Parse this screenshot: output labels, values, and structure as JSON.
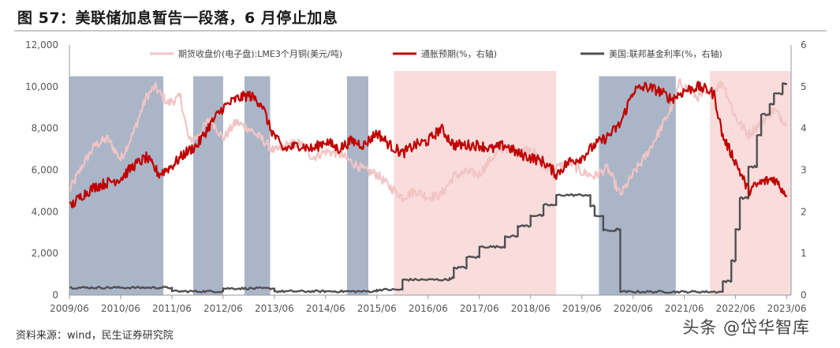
{
  "title": "图 57：美联储加息暂告一段落，6 月停止加息",
  "source": "资料来源：wind，民生证券研究院",
  "watermark": "头条 @岱华智库",
  "chart_data": {
    "type": "line",
    "x_tick_labels": [
      "2009/06",
      "2010/06",
      "2011/06",
      "2012/06",
      "2013/06",
      "2014/06",
      "2015/06",
      "2016/06",
      "2017/06",
      "2018/06",
      "2019/06",
      "2020/06",
      "2021/06",
      "2022/06",
      "2023/06"
    ],
    "x_range": [
      "2009/06",
      "2023/07"
    ],
    "y_left": {
      "range": [
        0,
        12000
      ],
      "ticks": [
        "0",
        "2,000",
        "4,000",
        "6,000",
        "8,000",
        "10,000",
        "12,000"
      ]
    },
    "y_right": {
      "range": [
        0,
        6
      ],
      "ticks": [
        "0",
        "1",
        "2",
        "3",
        "4",
        "5",
        "6"
      ]
    },
    "legend_position": "top",
    "colors": {
      "copper": "#f2c4c4",
      "inflation": "#c00000",
      "fedrate": "#505050",
      "shade_blue": "#aab5c8",
      "shade_pink": "#f9dcdc"
    },
    "shaded_periods": [
      {
        "start": "2009/06",
        "end": "2011/04",
        "color": "blue"
      },
      {
        "start": "2011/11",
        "end": "2012/06",
        "color": "blue"
      },
      {
        "start": "2012/11",
        "end": "2013/05",
        "color": "blue"
      },
      {
        "start": "2014/11",
        "end": "2015/04",
        "color": "blue"
      },
      {
        "start": "2015/10",
        "end": "2018/12",
        "color": "pink"
      },
      {
        "start": "2019/10",
        "end": "2021/04",
        "color": "blue"
      },
      {
        "start": "2021/12",
        "end": "2023/07",
        "color": "pink"
      }
    ],
    "shade_tops": {
      "blue": 10500,
      "pink": 10750
    },
    "series": [
      {
        "name": "期货收盘价(电子盘):LME3个月铜(美元/吨)",
        "axis": "left",
        "points": [
          [
            "2009/06",
            5000
          ],
          [
            "2009/09",
            6200
          ],
          [
            "2009/12",
            7200
          ],
          [
            "2010/03",
            7500
          ],
          [
            "2010/06",
            6500
          ],
          [
            "2010/09",
            7800
          ],
          [
            "2010/12",
            9500
          ],
          [
            "2011/02",
            10000
          ],
          [
            "2011/05",
            9200
          ],
          [
            "2011/08",
            9500
          ],
          [
            "2011/10",
            7400
          ],
          [
            "2011/12",
            7600
          ],
          [
            "2012/03",
            8500
          ],
          [
            "2012/06",
            7500
          ],
          [
            "2012/09",
            8300
          ],
          [
            "2012/12",
            8000
          ],
          [
            "2013/03",
            7500
          ],
          [
            "2013/06",
            6900
          ],
          [
            "2013/09",
            7200
          ],
          [
            "2013/12",
            7300
          ],
          [
            "2014/03",
            6600
          ],
          [
            "2014/06",
            6900
          ],
          [
            "2014/09",
            6800
          ],
          [
            "2014/12",
            6400
          ],
          [
            "2015/03",
            6000
          ],
          [
            "2015/06",
            5800
          ],
          [
            "2015/09",
            5200
          ],
          [
            "2015/12",
            4700
          ],
          [
            "2016/03",
            5000
          ],
          [
            "2016/06",
            4700
          ],
          [
            "2016/09",
            4800
          ],
          [
            "2016/12",
            5700
          ],
          [
            "2017/03",
            5900
          ],
          [
            "2017/06",
            5800
          ],
          [
            "2017/09",
            6600
          ],
          [
            "2017/12",
            7100
          ],
          [
            "2018/03",
            6800
          ],
          [
            "2018/06",
            7100
          ],
          [
            "2018/09",
            6100
          ],
          [
            "2018/12",
            6100
          ],
          [
            "2019/03",
            6400
          ],
          [
            "2019/06",
            5900
          ],
          [
            "2019/09",
            5700
          ],
          [
            "2019/12",
            6100
          ],
          [
            "2020/03",
            4800
          ],
          [
            "2020/06",
            5800
          ],
          [
            "2020/09",
            6700
          ],
          [
            "2020/12",
            7800
          ],
          [
            "2021/03",
            9000
          ],
          [
            "2021/05",
            10200
          ],
          [
            "2021/09",
            9500
          ],
          [
            "2021/12",
            9700
          ],
          [
            "2022/03",
            10200
          ],
          [
            "2022/06",
            8500
          ],
          [
            "2022/09",
            7700
          ],
          [
            "2022/12",
            8300
          ],
          [
            "2023/03",
            8900
          ],
          [
            "2023/06",
            8200
          ]
        ]
      },
      {
        "name": "通胀预期(%，右轴)",
        "axis": "right",
        "points": [
          [
            "2009/06",
            2.1
          ],
          [
            "2009/09",
            2.4
          ],
          [
            "2009/12",
            2.6
          ],
          [
            "2010/03",
            2.7
          ],
          [
            "2010/06",
            2.8
          ],
          [
            "2010/09",
            3.1
          ],
          [
            "2010/12",
            3.3
          ],
          [
            "2011/03",
            2.9
          ],
          [
            "2011/06",
            3.1
          ],
          [
            "2011/09",
            3.4
          ],
          [
            "2011/12",
            3.6
          ],
          [
            "2012/03",
            4.1
          ],
          [
            "2012/06",
            4.5
          ],
          [
            "2012/09",
            4.7
          ],
          [
            "2012/12",
            4.8
          ],
          [
            "2013/03",
            4.6
          ],
          [
            "2013/05",
            4.0
          ],
          [
            "2013/08",
            3.5
          ],
          [
            "2013/12",
            3.6
          ],
          [
            "2014/03",
            3.5
          ],
          [
            "2014/06",
            3.7
          ],
          [
            "2014/09",
            3.5
          ],
          [
            "2014/12",
            3.7
          ],
          [
            "2015/03",
            3.6
          ],
          [
            "2015/06",
            3.9
          ],
          [
            "2015/09",
            3.6
          ],
          [
            "2015/12",
            3.4
          ],
          [
            "2016/03",
            3.6
          ],
          [
            "2016/06",
            3.7
          ],
          [
            "2016/09",
            4.0
          ],
          [
            "2016/12",
            3.6
          ],
          [
            "2017/03",
            3.6
          ],
          [
            "2017/06",
            3.6
          ],
          [
            "2017/09",
            3.5
          ],
          [
            "2017/12",
            3.6
          ],
          [
            "2018/03",
            3.4
          ],
          [
            "2018/06",
            3.3
          ],
          [
            "2018/09",
            3.2
          ],
          [
            "2018/12",
            2.9
          ],
          [
            "2019/03",
            3.2
          ],
          [
            "2019/06",
            3.3
          ],
          [
            "2019/09",
            3.6
          ],
          [
            "2019/12",
            3.8
          ],
          [
            "2020/03",
            4.1
          ],
          [
            "2020/06",
            4.9
          ],
          [
            "2020/09",
            5.0
          ],
          [
            "2020/12",
            4.9
          ],
          [
            "2021/03",
            4.7
          ],
          [
            "2021/06",
            4.9
          ],
          [
            "2021/09",
            5.0
          ],
          [
            "2021/12",
            4.9
          ],
          [
            "2022/01",
            4.8
          ],
          [
            "2022/03",
            3.8
          ],
          [
            "2022/06",
            3.2
          ],
          [
            "2022/09",
            2.5
          ],
          [
            "2022/12",
            2.7
          ],
          [
            "2023/03",
            2.8
          ],
          [
            "2023/06",
            2.4
          ]
        ]
      },
      {
        "name": "美国:联邦基金利率(%，右轴)",
        "axis": "right",
        "points": [
          [
            "2009/06",
            0.18
          ],
          [
            "2010/06",
            0.18
          ],
          [
            "2011/06",
            0.09
          ],
          [
            "2012/06",
            0.16
          ],
          [
            "2013/06",
            0.09
          ],
          [
            "2014/06",
            0.09
          ],
          [
            "2015/06",
            0.13
          ],
          [
            "2015/12",
            0.37
          ],
          [
            "2016/11",
            0.41
          ],
          [
            "2016/12",
            0.66
          ],
          [
            "2017/03",
            0.91
          ],
          [
            "2017/06",
            1.16
          ],
          [
            "2017/12",
            1.41
          ],
          [
            "2018/03",
            1.66
          ],
          [
            "2018/06",
            1.91
          ],
          [
            "2018/09",
            2.16
          ],
          [
            "2018/12",
            2.4
          ],
          [
            "2019/07",
            2.4
          ],
          [
            "2019/08",
            2.13
          ],
          [
            "2019/09",
            1.9
          ],
          [
            "2019/11",
            1.55
          ],
          [
            "2020/02",
            1.58
          ],
          [
            "2020/03",
            0.08
          ],
          [
            "2020/06",
            0.08
          ],
          [
            "2021/06",
            0.08
          ],
          [
            "2022/02",
            0.08
          ],
          [
            "2022/03",
            0.33
          ],
          [
            "2022/05",
            0.83
          ],
          [
            "2022/06",
            1.58
          ],
          [
            "2022/07",
            2.33
          ],
          [
            "2022/09",
            3.08
          ],
          [
            "2022/11",
            3.83
          ],
          [
            "2022/12",
            4.33
          ],
          [
            "2023/02",
            4.58
          ],
          [
            "2023/03",
            4.83
          ],
          [
            "2023/05",
            5.08
          ],
          [
            "2023/06",
            5.08
          ]
        ]
      }
    ]
  }
}
